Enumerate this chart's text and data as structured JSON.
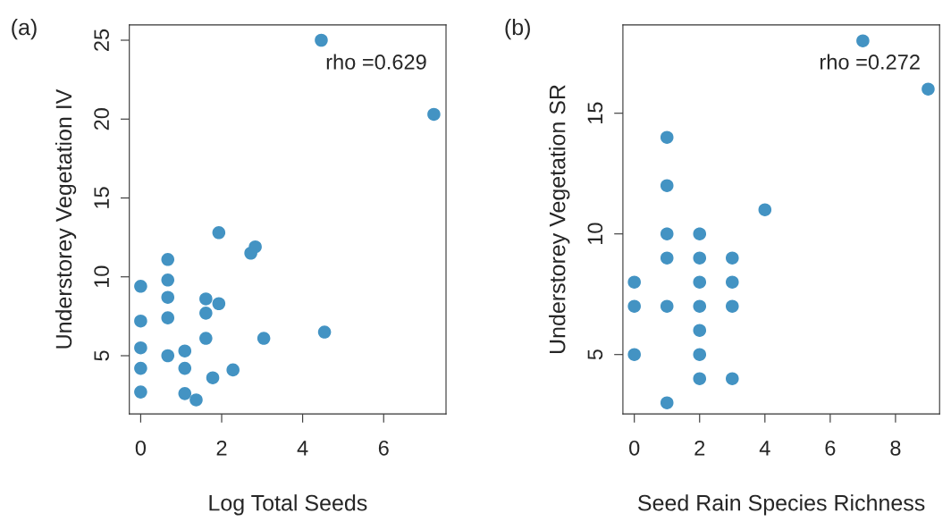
{
  "chart_data": [
    {
      "type": "scatter",
      "title": "(a)",
      "xlabel": "Log Total Seeds",
      "ylabel": "Understorey Vegetation IV",
      "annotations": [
        "rho =0.629"
      ],
      "marker": "circle",
      "grid": false,
      "legend": false,
      "xlim": [
        -0.28,
        7.54
      ],
      "ylim": [
        1.31,
        25.97
      ],
      "xticks": [
        0,
        2,
        4,
        6
      ],
      "yticks": [
        5,
        10,
        15,
        20,
        25
      ],
      "series": [
        {
          "color": "#4393c3",
          "x": [
            4.46,
            7.24,
            1.93,
            2.83,
            2.72,
            0.67,
            0,
            0.67,
            0.67,
            1.61,
            1.93,
            1.61,
            0.67,
            0,
            1.61,
            3.04,
            4.54,
            0,
            1.09,
            0.67,
            0,
            1.09,
            2.28,
            1.78,
            0,
            1.09,
            1.37
          ],
          "values": [
            25.0,
            20.3,
            12.8,
            11.9,
            11.5,
            11.1,
            9.4,
            9.8,
            8.7,
            8.6,
            8.3,
            7.7,
            7.4,
            7.2,
            6.1,
            6.1,
            6.5,
            5.5,
            5.3,
            5.0,
            4.2,
            4.2,
            4.1,
            3.6,
            2.7,
            2.6,
            2.2
          ]
        }
      ]
    },
    {
      "type": "scatter",
      "title": "(b)",
      "xlabel": "Seed Rain Species Richness",
      "ylabel": "Understorey Vegetation SR",
      "annotations": [
        "rho =0.272"
      ],
      "marker": "circle",
      "grid": false,
      "legend": false,
      "xlim": [
        -0.35,
        9.35
      ],
      "ylim": [
        2.54,
        18.66
      ],
      "xticks": [
        0,
        2,
        4,
        6,
        8
      ],
      "yticks": [
        5,
        10,
        15
      ],
      "series": [
        {
          "color": "#4393c3",
          "x": [
            7,
            9,
            1,
            1,
            4,
            1,
            2,
            1,
            2,
            3,
            0,
            2,
            3,
            0,
            1,
            2,
            3,
            2,
            0,
            2,
            2,
            3,
            1
          ],
          "values": [
            18,
            16,
            14,
            12,
            11,
            10,
            10,
            9,
            9,
            9,
            8,
            8,
            8,
            7,
            7,
            7,
            7,
            6,
            5,
            5,
            4,
            4,
            3
          ]
        }
      ]
    }
  ]
}
